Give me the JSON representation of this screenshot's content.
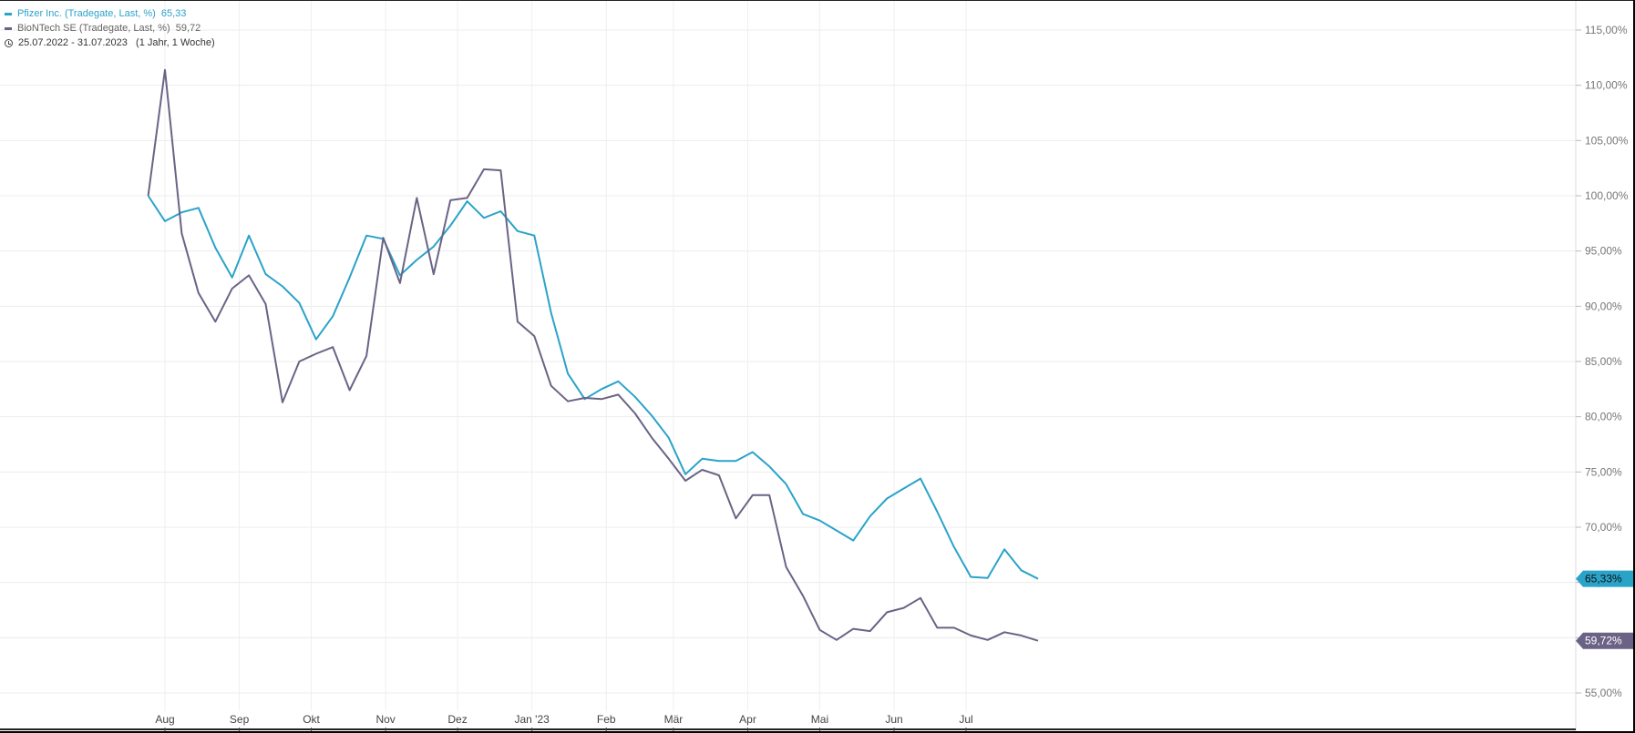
{
  "legend": {
    "series": [
      {
        "label": "Pfizer Inc. (Tradegate, Last, %)",
        "value": "65,33",
        "color": "#2aa3c9"
      },
      {
        "label": "BioNTech SE (Tradegate, Last, %)",
        "value": "59,72",
        "color": "#6b6385"
      }
    ],
    "period": "25.07.2022 - 31.07.2023   (1 Jahr, 1 Woche)"
  },
  "chart_data": {
    "type": "line",
    "ylim": [
      53,
      118
    ],
    "y_ticks": [
      55,
      60,
      65,
      70,
      75,
      80,
      85,
      90,
      95,
      100,
      105,
      110,
      115
    ],
    "y_tick_labels": [
      "55,00%",
      "60,00%",
      "65,00%",
      "70,00%",
      "75,00%",
      "80,00%",
      "85,00%",
      "90,00%",
      "95,00%",
      "100,00%",
      "105,00%",
      "110,00%",
      "115,00%"
    ],
    "x_month_labels": [
      {
        "label": "Aug",
        "date": "2022-08-01"
      },
      {
        "label": "Sep",
        "date": "2022-09-01"
      },
      {
        "label": "Okt",
        "date": "2022-10-01"
      },
      {
        "label": "Nov",
        "date": "2022-11-01"
      },
      {
        "label": "Dez",
        "date": "2022-12-01"
      },
      {
        "label": "Jan '23",
        "date": "2023-01-01"
      },
      {
        "label": "Feb",
        "date": "2023-02-01"
      },
      {
        "label": "Mär",
        "date": "2023-03-01"
      },
      {
        "label": "Apr",
        "date": "2023-04-01"
      },
      {
        "label": "Mai",
        "date": "2023-05-01"
      },
      {
        "label": "Jun",
        "date": "2023-06-01"
      },
      {
        "label": "Jul",
        "date": "2023-07-01"
      }
    ],
    "dates": [
      "2022-07-25",
      "2022-08-01",
      "2022-08-08",
      "2022-08-15",
      "2022-08-22",
      "2022-08-29",
      "2022-09-05",
      "2022-09-12",
      "2022-09-19",
      "2022-09-26",
      "2022-10-03",
      "2022-10-10",
      "2022-10-17",
      "2022-10-24",
      "2022-10-31",
      "2022-11-07",
      "2022-11-14",
      "2022-11-21",
      "2022-11-28",
      "2022-12-05",
      "2022-12-12",
      "2022-12-19",
      "2022-12-26",
      "2023-01-02",
      "2023-01-09",
      "2023-01-16",
      "2023-01-23",
      "2023-01-30",
      "2023-02-06",
      "2023-02-13",
      "2023-02-20",
      "2023-02-27",
      "2023-03-06",
      "2023-03-13",
      "2023-03-20",
      "2023-03-27",
      "2023-04-03",
      "2023-04-10",
      "2023-04-17",
      "2023-04-24",
      "2023-05-01",
      "2023-05-08",
      "2023-05-15",
      "2023-05-22",
      "2023-05-29",
      "2023-06-05",
      "2023-06-12",
      "2023-06-19",
      "2023-06-26",
      "2023-07-03",
      "2023-07-10",
      "2023-07-17",
      "2023-07-24",
      "2023-07-31"
    ],
    "series": [
      {
        "name": "Pfizer Inc. (Tradegate, Last, %)",
        "color": "#2aa3c9",
        "last_label": "65,33%",
        "values": [
          100.0,
          97.7,
          98.5,
          98.9,
          95.3,
          92.6,
          96.4,
          92.9,
          91.8,
          90.3,
          87.0,
          89.1,
          92.6,
          96.4,
          96.1,
          92.8,
          94.2,
          95.4,
          97.3,
          99.5,
          98.0,
          98.6,
          96.8,
          96.4,
          89.4,
          83.9,
          81.6,
          82.5,
          83.2,
          81.8,
          80.1,
          78.1,
          74.8,
          76.2,
          76.0,
          76.0,
          76.8,
          75.5,
          73.9,
          71.2,
          70.6,
          69.7,
          68.8,
          71.0,
          72.6,
          73.5,
          74.4,
          71.4,
          68.2,
          65.5,
          65.4,
          68.0,
          66.1,
          65.33
        ]
      },
      {
        "name": "BioNTech SE (Tradegate, Last, %)",
        "color": "#6b6385",
        "last_label": "59,72%",
        "values": [
          100.0,
          111.4,
          96.6,
          91.2,
          88.6,
          91.6,
          92.8,
          90.2,
          81.3,
          85.0,
          85.7,
          86.3,
          82.4,
          85.5,
          96.2,
          92.1,
          99.8,
          92.9,
          99.6,
          99.8,
          102.4,
          102.3,
          88.6,
          87.3,
          82.8,
          81.4,
          81.7,
          81.6,
          82.0,
          80.3,
          78.1,
          76.2,
          74.2,
          75.2,
          74.7,
          70.8,
          72.9,
          72.9,
          66.4,
          63.8,
          60.7,
          59.8,
          60.8,
          60.6,
          62.3,
          62.7,
          63.6,
          60.9,
          60.9,
          60.2,
          59.8,
          60.5,
          60.2,
          59.72
        ]
      }
    ]
  }
}
